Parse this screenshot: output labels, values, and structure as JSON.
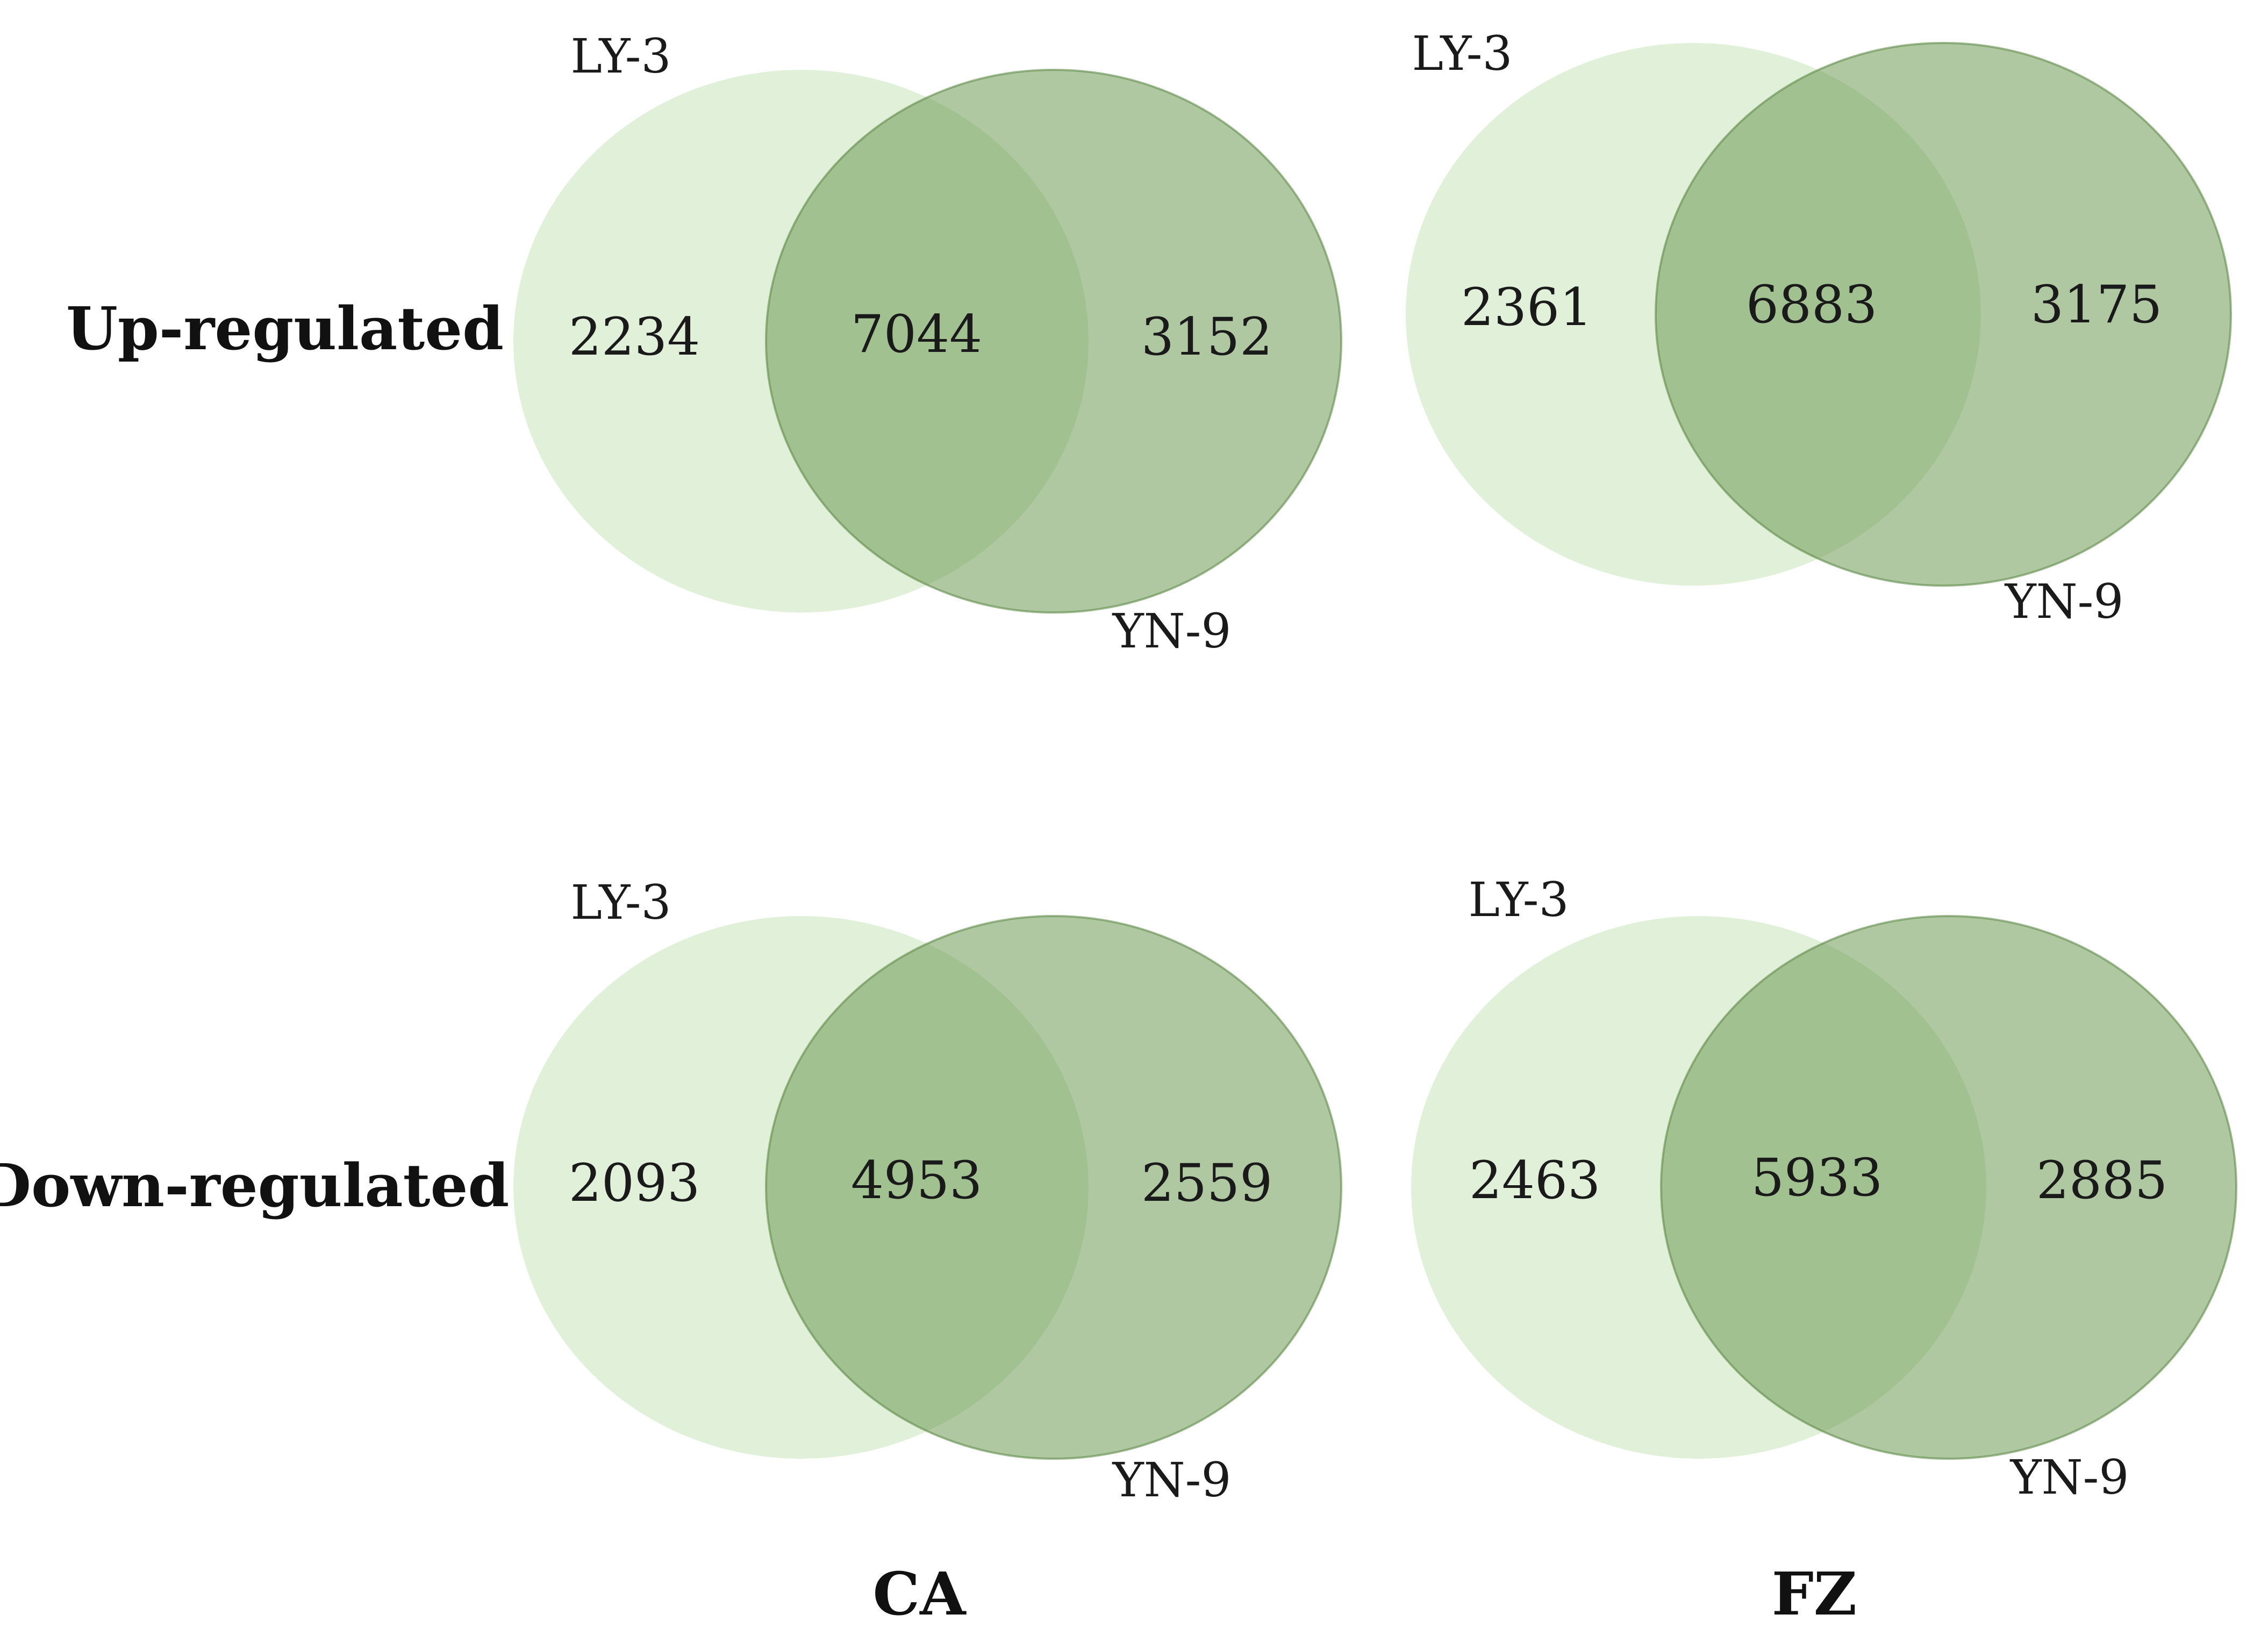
{
  "colors": {
    "left_circle": "#c9e3b9",
    "right_circle": "#6f9a55",
    "right_circle_stroke": "#5f8a48",
    "text": "#1a1a1a"
  },
  "row_labels": [
    "Up-regulated",
    "Down-regulated"
  ],
  "col_labels": [
    "CA",
    "FZ"
  ],
  "venns": [
    {
      "row": "Up-regulated",
      "col": "CA",
      "left_set": "LY-3",
      "right_set": "YN-9",
      "left_only": "2234",
      "overlap": "7044",
      "right_only": "3152"
    },
    {
      "row": "Up-regulated",
      "col": "FZ",
      "left_set": "LY-3",
      "right_set": "YN-9",
      "left_only": "2361",
      "overlap": "6883",
      "right_only": "3175"
    },
    {
      "row": "Down-regulated",
      "col": "CA",
      "left_set": "LY-3",
      "right_set": "YN-9",
      "left_only": "2093",
      "overlap": "4953",
      "right_only": "2559"
    },
    {
      "row": "Down-regulated",
      "col": "FZ",
      "left_set": "LY-3",
      "right_set": "YN-9",
      "left_only": "2463",
      "overlap": "5933",
      "right_only": "2885"
    }
  ]
}
